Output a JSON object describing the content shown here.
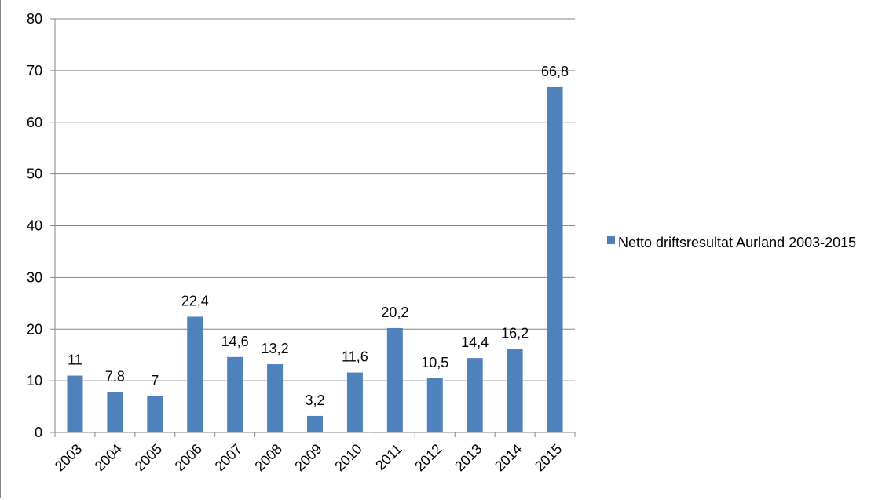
{
  "chart_data": {
    "type": "bar",
    "categories": [
      "2003",
      "2004",
      "2005",
      "2006",
      "2007",
      "2008",
      "2009",
      "2010",
      "2011",
      "2012",
      "2013",
      "2014",
      "2015"
    ],
    "series": [
      {
        "name": "Netto driftsresultat Aurland 2003-2015",
        "values": [
          11,
          7.8,
          7,
          22.4,
          14.6,
          13.2,
          3.2,
          11.6,
          20.2,
          10.5,
          14.4,
          16.2,
          66.8
        ],
        "data_labels": [
          "11",
          "7,8",
          "7",
          "22,4",
          "14,6",
          "13,2",
          "3,2",
          "11,6",
          "20,2",
          "10,5",
          "14,4",
          "16,2",
          "66,8"
        ],
        "color": "#4f81bd"
      }
    ],
    "title": "",
    "xlabel": "",
    "ylabel": "",
    "ylim": [
      0,
      80
    ],
    "yticks": [
      "0",
      "10",
      "20",
      "30",
      "40",
      "50",
      "60",
      "70",
      "80"
    ],
    "grid": true,
    "legend_position": "right"
  }
}
